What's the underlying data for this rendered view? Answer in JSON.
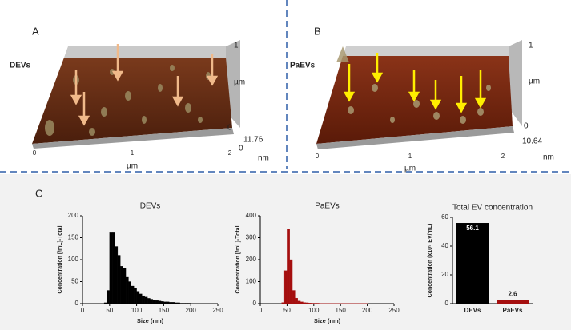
{
  "panel_a": {
    "label": "A",
    "sample": "DEVs",
    "x_labels": [
      "0",
      "1",
      "2"
    ],
    "x_unit": "µm",
    "z_top": "1",
    "z_unit": "µm",
    "z_zero": "0",
    "height_zero": "0",
    "height_max": "11.76",
    "height_unit": "nm"
  },
  "panel_b": {
    "label": "B",
    "sample": "PaEVs",
    "x_labels": [
      "0",
      "1",
      "2"
    ],
    "x_unit": "µm",
    "z_top": "1",
    "z_unit": "µm",
    "z_zero": "0",
    "height_max": "10.64",
    "height_unit": "nm"
  },
  "panel_c": {
    "label": "C"
  },
  "chart_data": [
    {
      "type": "histogram",
      "title": "DEVs",
      "x_label": "Size (nm)",
      "y_label": "Concentration [/mL]-Total",
      "color": "#000000",
      "bins": [
        40,
        45,
        50,
        55,
        60,
        65,
        70,
        75,
        80,
        85,
        90,
        95,
        100,
        105,
        110,
        115,
        120,
        125,
        130,
        135,
        140,
        145,
        150,
        155,
        160,
        165,
        170,
        175,
        180,
        185,
        190,
        195,
        200
      ],
      "values": [
        2,
        30,
        163,
        163,
        130,
        110,
        85,
        80,
        60,
        50,
        40,
        35,
        28,
        22,
        18,
        15,
        12,
        10,
        8,
        7,
        6,
        5,
        4,
        4,
        3,
        3,
        2,
        2,
        1,
        1,
        1,
        1
      ],
      "xlim": [
        0,
        250
      ],
      "xticks": [
        0,
        50,
        100,
        150,
        200,
        250
      ],
      "ylim": [
        0,
        200
      ],
      "yticks": [
        0,
        50,
        100,
        150,
        200
      ]
    },
    {
      "type": "histogram",
      "title": "PaEVs",
      "x_label": "Size (nm)",
      "y_label": "Concentration [/mL]-Total",
      "color": "#a50f0f",
      "bins": [
        40,
        45,
        50,
        55,
        60,
        65,
        70,
        75,
        80,
        85,
        90,
        95,
        100,
        105,
        110,
        115,
        120,
        125,
        130,
        135,
        140,
        145,
        150,
        155,
        160,
        165,
        170,
        175,
        180,
        185,
        190,
        195,
        200
      ],
      "values": [
        5,
        150,
        340,
        200,
        60,
        25,
        12,
        8,
        5,
        4,
        3,
        2,
        2,
        2,
        1,
        1,
        1,
        1,
        1,
        1,
        1,
        1,
        1,
        1,
        1,
        1,
        1,
        1,
        1,
        1,
        1,
        1
      ],
      "xlim": [
        0,
        250
      ],
      "xticks": [
        0,
        50,
        100,
        150,
        200,
        250
      ],
      "ylim": [
        0,
        400
      ],
      "yticks": [
        0,
        100,
        200,
        300,
        400
      ]
    },
    {
      "type": "bar",
      "title": "Total EV concentration",
      "y_label": "Concentration (x10⁹ EV/mL)",
      "categories": [
        "DEVs",
        "PaEVs"
      ],
      "values": [
        56.1,
        2.6
      ],
      "colors": [
        "#000000",
        "#a50f0f"
      ],
      "ylim": [
        0,
        60
      ],
      "yticks": [
        0,
        20,
        40,
        60
      ]
    }
  ]
}
